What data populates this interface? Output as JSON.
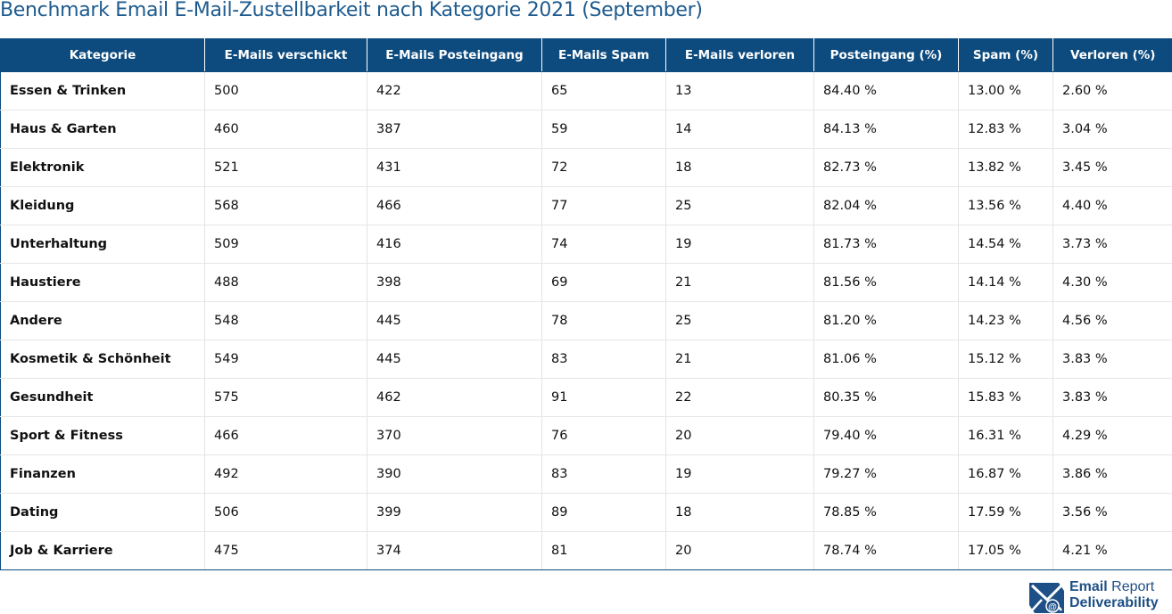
{
  "title": "Benchmark Email E-Mail-Zustellbarkeit nach Kategorie 2021 (September)",
  "table": {
    "columns": [
      "Kategorie",
      "E-Mails verschickt",
      "E-Mails Posteingang",
      "E-Mails Spam",
      "E-Mails verloren",
      "Posteingang (%)",
      "Spam (%)",
      "Verloren (%)"
    ],
    "rows": [
      [
        "Essen & Trinken",
        "500",
        "422",
        "65",
        "13",
        "84.40 %",
        "13.00 %",
        "2.60 %"
      ],
      [
        "Haus & Garten",
        "460",
        "387",
        "59",
        "14",
        "84.13 %",
        "12.83 %",
        "3.04 %"
      ],
      [
        "Elektronik",
        "521",
        "431",
        "72",
        "18",
        "82.73 %",
        "13.82 %",
        "3.45 %"
      ],
      [
        "Kleidung",
        "568",
        "466",
        "77",
        "25",
        "82.04 %",
        "13.56 %",
        "4.40 %"
      ],
      [
        "Unterhaltung",
        "509",
        "416",
        "74",
        "19",
        "81.73 %",
        "14.54 %",
        "3.73 %"
      ],
      [
        "Haustiere",
        "488",
        "398",
        "69",
        "21",
        "81.56 %",
        "14.14 %",
        "4.30 %"
      ],
      [
        "Andere",
        "548",
        "445",
        "78",
        "25",
        "81.20 %",
        "14.23 %",
        "4.56 %"
      ],
      [
        "Kosmetik & Schönheit",
        "549",
        "445",
        "83",
        "21",
        "81.06 %",
        "15.12 %",
        "3.83 %"
      ],
      [
        "Gesundheit",
        "575",
        "462",
        "91",
        "22",
        "80.35 %",
        "15.83 %",
        "3.83 %"
      ],
      [
        "Sport & Fitness",
        "466",
        "370",
        "76",
        "20",
        "79.40 %",
        "16.31 %",
        "4.29 %"
      ],
      [
        "Finanzen",
        "492",
        "390",
        "83",
        "19",
        "79.27 %",
        "16.87 %",
        "3.86 %"
      ],
      [
        "Dating",
        "506",
        "399",
        "89",
        "18",
        "78.85 %",
        "17.59 %",
        "3.56 %"
      ],
      [
        "Job & Karriere",
        "475",
        "374",
        "81",
        "20",
        "78.74 %",
        "17.05 %",
        "4.21 %"
      ]
    ]
  },
  "branding": {
    "line1_bold": "Email",
    "line1_light": "Report",
    "line2": "Deliverability",
    "icon": "envelope-at-icon"
  },
  "colors": {
    "header_background": "#0d4b7e",
    "title": "#1e5b8f",
    "brand": "#1e4f86"
  }
}
